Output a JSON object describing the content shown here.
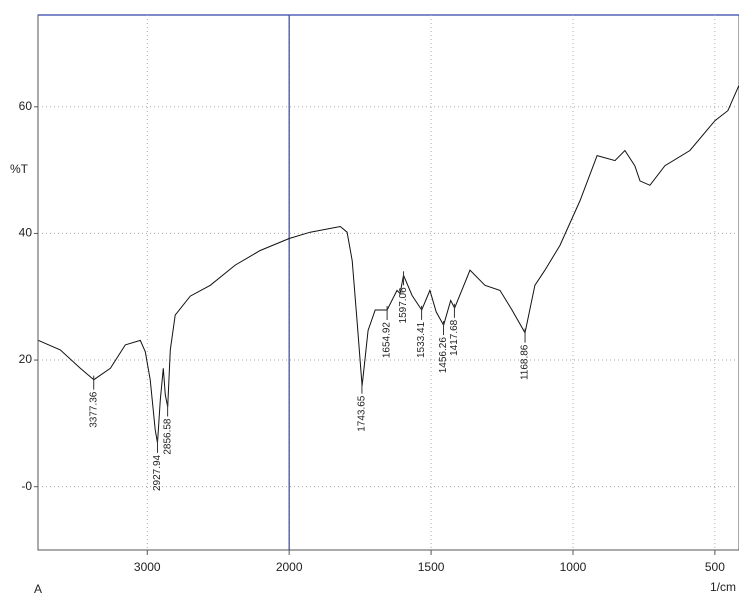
{
  "chart_data": {
    "type": "line",
    "y_label": "%T",
    "x_label": "1/cm",
    "corner_label": "A",
    "color": "#111111",
    "grid": true,
    "xlim": [
      3770,
      415
    ],
    "x_scale_break": 2000,
    "xticks": [
      3000,
      2000,
      1500,
      1000,
      500
    ],
    "ylim": [
      -10,
      74.5
    ],
    "yticks": [
      60,
      40,
      20,
      {
        "value": 0,
        "label": "-0"
      }
    ],
    "x": [
      3767,
      3613,
      3472,
      3377,
      3260,
      3155,
      3049,
      3014,
      2979,
      2944,
      2928,
      2908,
      2887,
      2873,
      2856,
      2838,
      2803,
      2697,
      2556,
      2380,
      2204,
      2000,
      1926,
      1820,
      1796,
      1778,
      1761,
      1743,
      1722,
      1697,
      1655,
      1620,
      1609,
      1597,
      1567,
      1533,
      1504,
      1482,
      1456,
      1431,
      1417,
      1363,
      1310,
      1257,
      1215,
      1169,
      1134,
      1099,
      1046,
      975,
      915,
      852,
      817,
      782,
      764,
      729,
      676,
      588,
      500,
      454,
      416
    ],
    "values": [
      23.1,
      21.6,
      18.7,
      16.9,
      18.7,
      22.4,
      23.1,
      21.3,
      16.9,
      9.0,
      6.9,
      13.7,
      18.7,
      14.5,
      12.6,
      21.6,
      27.1,
      30.1,
      31.8,
      35.0,
      37.3,
      39.2,
      40.2,
      41.1,
      40.2,
      35.7,
      26.3,
      15.9,
      24.7,
      27.9,
      27.9,
      31.0,
      30.5,
      33.4,
      30.2,
      27.9,
      31.0,
      27.6,
      25.5,
      29.4,
      28.2,
      34.2,
      31.8,
      31.0,
      27.9,
      24.3,
      31.8,
      34.2,
      38.1,
      45.2,
      52.3,
      51.5,
      53.1,
      50.7,
      48.3,
      47.6,
      50.7,
      53.1,
      57.8,
      59.4,
      63.3
    ],
    "peaks": [
      3377.36,
      2927.94,
      2856.58,
      1743.65,
      1654.92,
      1597.06,
      1533.41,
      1456.26,
      1417.68,
      1168.86
    ]
  }
}
